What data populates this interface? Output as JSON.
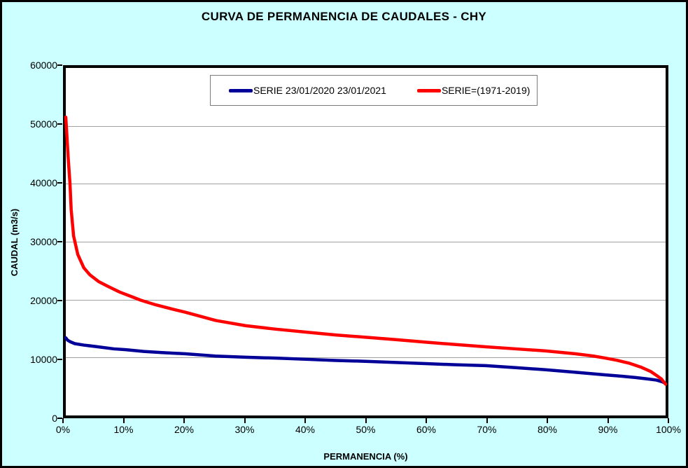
{
  "window_title": "CURVA DE PERMANENCIA DE CAUDALES - CHY",
  "colors": {
    "background": "#CCFFFF",
    "plot_background": "#FFFFFF",
    "frame_border": "#000000",
    "gridline": "#A0A0A0",
    "series_blue": "#000099",
    "series_red": "#FF0000"
  },
  "chart_data": {
    "type": "line",
    "title": "CURVA DE PERMANENCIA DE CAUDALES - CHY",
    "xlabel": "PERMANENCIA (%)",
    "ylabel": "CAUDAL (m3/s)",
    "xlim": [
      0,
      100
    ],
    "ylim": [
      0,
      60000
    ],
    "grid": "horizontal gridlines every 10000",
    "legend_position": "top-center inside chart, white box",
    "xticks": {
      "values": [
        0,
        10,
        20,
        30,
        40,
        50,
        60,
        70,
        80,
        90,
        100
      ],
      "labels": [
        "0%",
        "10%",
        "20%",
        "30%",
        "40%",
        "50%",
        "60%",
        "70%",
        "80%",
        "90%",
        "100%"
      ]
    },
    "yticks": {
      "values": [
        0,
        10000,
        20000,
        30000,
        40000,
        50000,
        60000
      ],
      "labels": [
        "0",
        "10000",
        "20000",
        "30000",
        "40000",
        "50000",
        "60000"
      ]
    },
    "series": [
      {
        "name": "SERIE 23/01/2020 23/01/2021",
        "color": "#000099",
        "points": [
          [
            0,
            13400
          ],
          [
            0.3,
            13000
          ],
          [
            0.8,
            12700
          ],
          [
            1.5,
            12400
          ],
          [
            3,
            12150
          ],
          [
            5,
            11900
          ],
          [
            8,
            11500
          ],
          [
            10,
            11350
          ],
          [
            13,
            11050
          ],
          [
            16,
            10850
          ],
          [
            20,
            10650
          ],
          [
            25,
            10250
          ],
          [
            30,
            10050
          ],
          [
            35,
            9900
          ],
          [
            40,
            9700
          ],
          [
            45,
            9500
          ],
          [
            50,
            9350
          ],
          [
            55,
            9150
          ],
          [
            60,
            8950
          ],
          [
            65,
            8750
          ],
          [
            70,
            8600
          ],
          [
            75,
            8250
          ],
          [
            80,
            7900
          ],
          [
            85,
            7450
          ],
          [
            90,
            7000
          ],
          [
            93,
            6750
          ],
          [
            95,
            6550
          ],
          [
            97,
            6300
          ],
          [
            98.5,
            6100
          ],
          [
            99.5,
            5800
          ],
          [
            100,
            5500
          ]
        ]
      },
      {
        "name": "SERIE=(1971-2019)",
        "color": "#FF0000",
        "points": [
          [
            0,
            51500
          ],
          [
            0.4,
            44500
          ],
          [
            0.7,
            40000
          ],
          [
            0.9,
            35500
          ],
          [
            1.3,
            31000
          ],
          [
            2,
            27800
          ],
          [
            3,
            25500
          ],
          [
            4,
            24300
          ],
          [
            5.5,
            23100
          ],
          [
            7,
            22300
          ],
          [
            9,
            21300
          ],
          [
            11,
            20500
          ],
          [
            12.5,
            19900
          ],
          [
            15,
            19100
          ],
          [
            18,
            18300
          ],
          [
            20,
            17800
          ],
          [
            25,
            16400
          ],
          [
            30,
            15500
          ],
          [
            35,
            14900
          ],
          [
            40,
            14400
          ],
          [
            45,
            13900
          ],
          [
            50,
            13500
          ],
          [
            55,
            13100
          ],
          [
            60,
            12650
          ],
          [
            65,
            12250
          ],
          [
            70,
            11850
          ],
          [
            75,
            11500
          ],
          [
            80,
            11150
          ],
          [
            85,
            10650
          ],
          [
            88,
            10250
          ],
          [
            90,
            9900
          ],
          [
            92,
            9500
          ],
          [
            94,
            9000
          ],
          [
            96,
            8300
          ],
          [
            97.5,
            7600
          ],
          [
            98.5,
            6900
          ],
          [
            99.3,
            6300
          ],
          [
            100,
            5400
          ]
        ]
      }
    ]
  }
}
